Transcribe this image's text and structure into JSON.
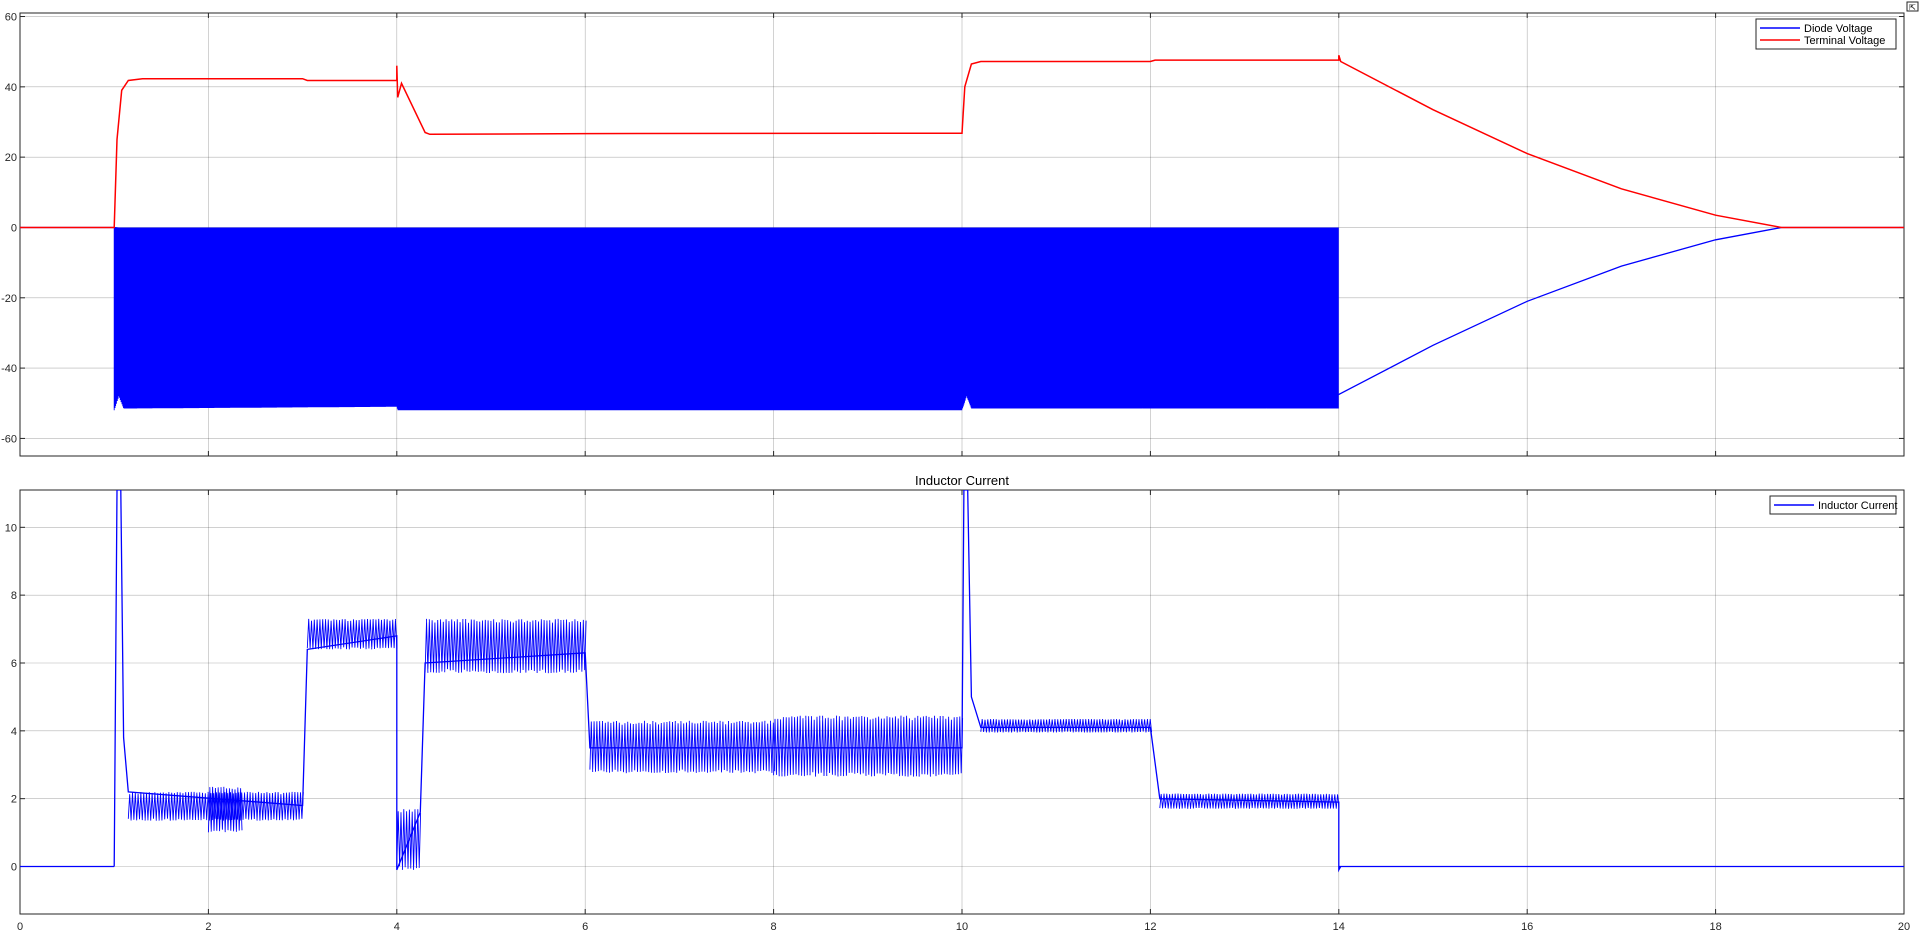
{
  "chart_data": [
    {
      "type": "line",
      "title": "",
      "xlabel": "",
      "ylabel": "",
      "xlim": [
        0,
        20
      ],
      "ylim": [
        -65,
        61
      ],
      "xticks": [
        0,
        2,
        4,
        6,
        8,
        10,
        12,
        14,
        16,
        18,
        20
      ],
      "yticks": [
        -60,
        -40,
        -20,
        0,
        20,
        40,
        60
      ],
      "ytick_labels": [
        "-60",
        "-40",
        "-20",
        "0",
        "20",
        "40",
        "60"
      ],
      "grid": true,
      "legend_position": "top-right",
      "series": [
        {
          "name": "Diode Voltage",
          "color": "#0000ff",
          "style": "switching",
          "low_envelope": [
            [
              1.0,
              -52
            ],
            [
              1.05,
              -48
            ],
            [
              1.1,
              -51.5
            ],
            [
              4.0,
              -51
            ],
            [
              4.01,
              -52
            ],
            [
              10.0,
              -52
            ],
            [
              10.05,
              -48
            ],
            [
              10.1,
              -51.5
            ],
            [
              14.0,
              -51.5
            ]
          ],
          "high_envelope": [
            [
              1.0,
              0
            ],
            [
              14.0,
              0
            ]
          ],
          "points": [
            [
              0,
              0
            ],
            [
              1.0,
              0
            ],
            [
              14.0,
              -47.5
            ],
            [
              15,
              -33.5
            ],
            [
              16,
              -21
            ],
            [
              17,
              -11
            ],
            [
              18,
              -3.5
            ],
            [
              18.7,
              0
            ],
            [
              20,
              0
            ]
          ]
        },
        {
          "name": "Terminal Voltage",
          "color": "#ff0000",
          "style": "line",
          "points": [
            [
              0,
              0
            ],
            [
              1.0,
              0
            ],
            [
              1.03,
              25
            ],
            [
              1.08,
              39
            ],
            [
              1.15,
              41.8
            ],
            [
              1.3,
              42.3
            ],
            [
              3.0,
              42.3
            ],
            [
              3.05,
              41.8
            ],
            [
              4.0,
              41.8
            ],
            [
              4.0,
              46
            ],
            [
              4.01,
              37
            ],
            [
              4.05,
              41
            ],
            [
              4.3,
              27
            ],
            [
              4.35,
              26.5
            ],
            [
              6.0,
              26.7
            ],
            [
              10.0,
              26.8
            ],
            [
              10.03,
              40
            ],
            [
              10.1,
              46.5
            ],
            [
              10.2,
              47.2
            ],
            [
              12.0,
              47.2
            ],
            [
              12.05,
              47.6
            ],
            [
              14.0,
              47.6
            ],
            [
              14.0,
              49
            ],
            [
              14.02,
              47.2
            ],
            [
              15,
              33.5
            ],
            [
              16,
              21
            ],
            [
              17,
              11
            ],
            [
              18,
              3.5
            ],
            [
              18.7,
              0
            ],
            [
              20,
              0
            ]
          ]
        }
      ]
    },
    {
      "type": "line",
      "title": "Inductor Current",
      "xlabel": "",
      "ylabel": "",
      "xlim": [
        0,
        20
      ],
      "ylim": [
        -1.4,
        11.1
      ],
      "xticks": [
        0,
        2,
        4,
        6,
        8,
        10,
        12,
        14,
        16,
        18,
        20
      ],
      "xtick_labels": [
        "0",
        "2",
        "4",
        "6",
        "8",
        "10",
        "12",
        "14",
        "16",
        "18",
        "20"
      ],
      "yticks": [
        0,
        2,
        4,
        6,
        8,
        10
      ],
      "ytick_labels": [
        "0",
        "2",
        "4",
        "6",
        "8",
        "10"
      ],
      "grid": true,
      "legend_position": "top-right",
      "series": [
        {
          "name": "Inductor Current",
          "color": "#0000ff",
          "style": "ripple",
          "segments": [
            {
              "x0": 0,
              "x1": 1.0,
              "lo": 0,
              "hi": 0
            },
            {
              "x0": 1.0,
              "x1": 1.0,
              "lo": 0,
              "hi": 11.1
            },
            {
              "x0": 1.07,
              "x1": 1.07,
              "lo": 11.1,
              "hi": 11.1
            },
            {
              "x0": 1.15,
              "x1": 3.0,
              "lo": 1.35,
              "hi": 2.2
            },
            {
              "x0": 2.0,
              "x1": 2.35,
              "lo": 1.0,
              "hi": 2.35
            },
            {
              "x0": 3.05,
              "x1": 4.0,
              "lo": 6.4,
              "hi": 7.3
            },
            {
              "x0": 4.0,
              "x1": 4.25,
              "lo": -0.1,
              "hi": 1.7
            },
            {
              "x0": 4.3,
              "x1": 6.0,
              "lo": 5.7,
              "hi": 7.3
            },
            {
              "x0": 6.05,
              "x1": 8.0,
              "lo": 2.75,
              "hi": 4.3
            },
            {
              "x0": 8.0,
              "x1": 10.0,
              "lo": 2.65,
              "hi": 4.45
            },
            {
              "x0": 10.2,
              "x1": 12.0,
              "lo": 3.95,
              "hi": 4.35
            },
            {
              "x0": 12.1,
              "x1": 14.0,
              "lo": 1.7,
              "hi": 2.15
            },
            {
              "x0": 14.0,
              "x1": 20.0,
              "lo": 0,
              "hi": 0
            }
          ],
          "peaks": [
            [
              1.0,
              0
            ],
            [
              1.03,
              11.1
            ],
            [
              1.07,
              11.1
            ],
            [
              1.1,
              3.8
            ],
            [
              1.15,
              2.2
            ],
            [
              3.0,
              1.8
            ],
            [
              3.05,
              6.4
            ],
            [
              4.0,
              6.8
            ],
            [
              4.0,
              -0.1
            ],
            [
              4.25,
              1.6
            ],
            [
              4.3,
              6.0
            ],
            [
              6.0,
              6.3
            ],
            [
              6.05,
              3.5
            ],
            [
              10.0,
              3.5
            ],
            [
              10.02,
              11.1
            ],
            [
              10.06,
              11.1
            ],
            [
              10.1,
              5.0
            ],
            [
              10.2,
              4.1
            ],
            [
              12.0,
              4.1
            ],
            [
              12.1,
              2.0
            ],
            [
              14.0,
              1.9
            ],
            [
              14.0,
              -0.1
            ],
            [
              14.02,
              0
            ]
          ]
        }
      ]
    }
  ]
}
